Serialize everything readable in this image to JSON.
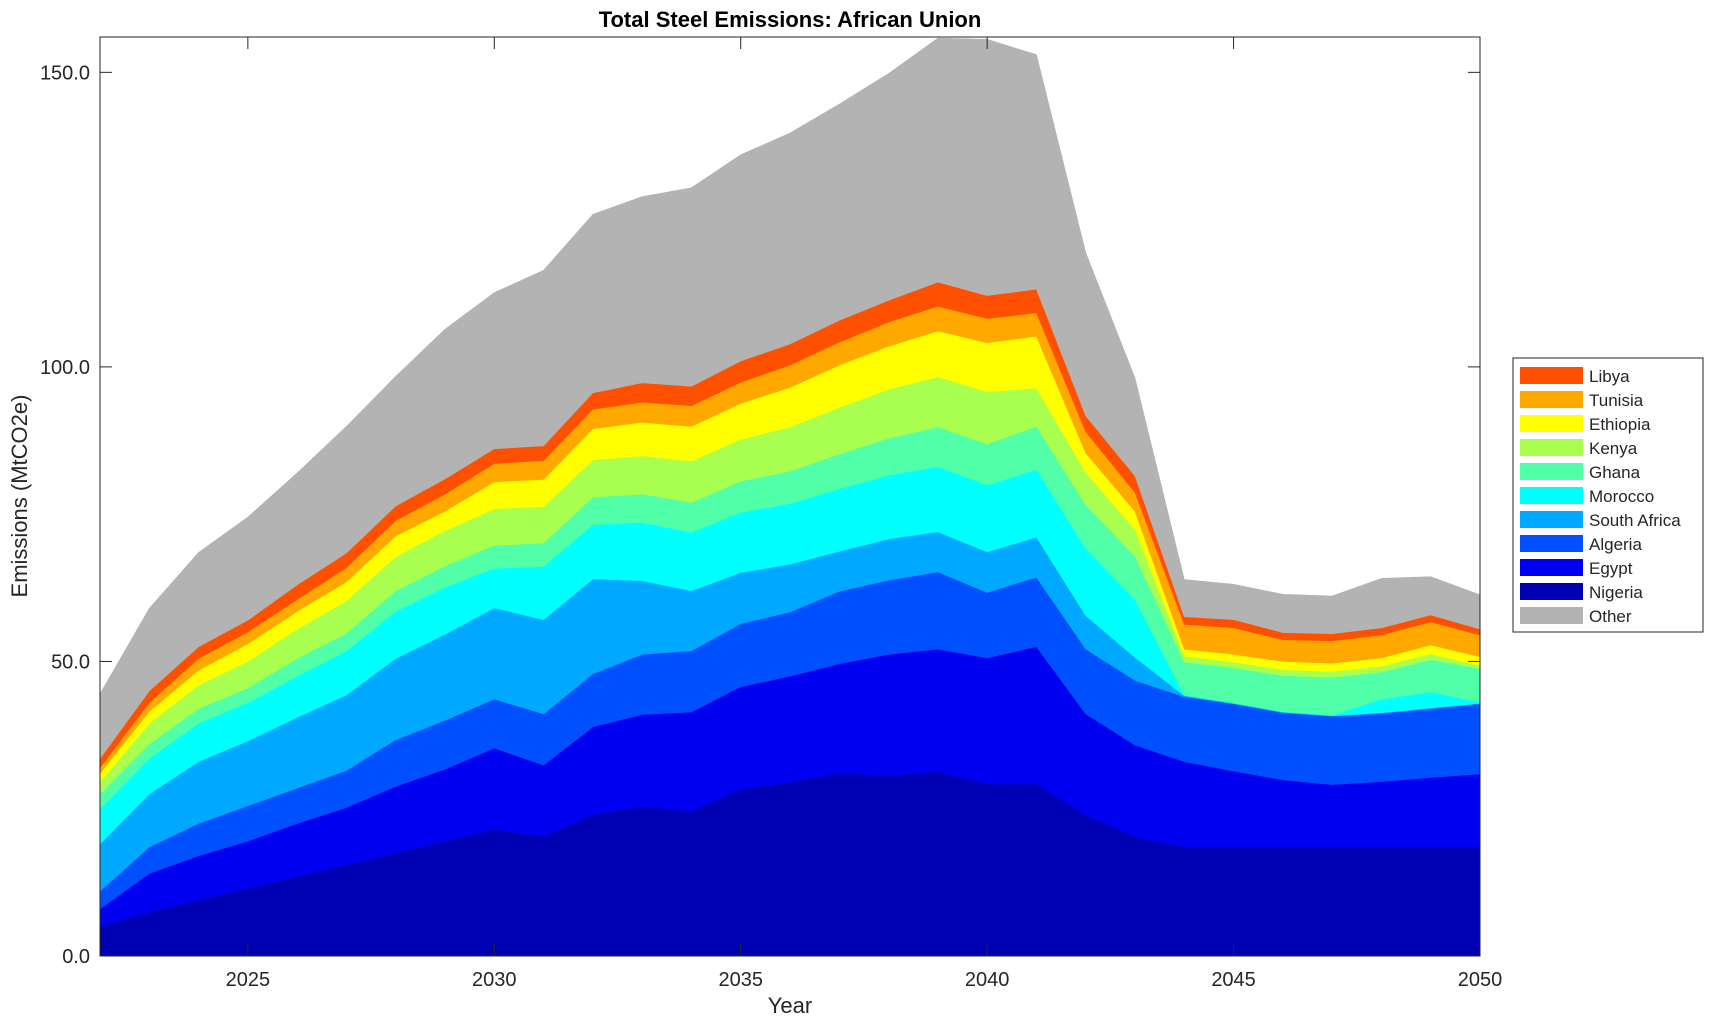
{
  "chart_data": {
    "type": "area",
    "stacked": true,
    "title": "Total Steel Emissions: African Union",
    "xlabel": "Year",
    "ylabel": "Emissions (MtCO2e)",
    "xlim": [
      2022,
      2050
    ],
    "ylim": [
      0,
      156
    ],
    "xticks": [
      2025,
      2030,
      2035,
      2040,
      2045,
      2050
    ],
    "xtick_labels": [
      "2025",
      "2030",
      "2035",
      "2040",
      "2045",
      "2050"
    ],
    "yticks": [
      0,
      50,
      100,
      150
    ],
    "ytick_labels": [
      "0.0",
      "50.0",
      "100.0",
      "150.0"
    ],
    "legend_position": "right",
    "x": [
      2022,
      2023,
      2024,
      2025,
      2026,
      2027,
      2028,
      2029,
      2030,
      2031,
      2032,
      2033,
      2034,
      2035,
      2036,
      2037,
      2038,
      2039,
      2040,
      2041,
      2042,
      2043,
      2044,
      2045,
      2046,
      2047,
      2048,
      2049,
      2050
    ],
    "series": [
      {
        "name": "Nigeria",
        "color": "#0000b3",
        "values": [
          5,
          7.5,
          9.5,
          11.5,
          13.5,
          15.5,
          17.5,
          19.5,
          21.5,
          20.3,
          24,
          25.4,
          24.6,
          28.3,
          29.5,
          31.1,
          30.6,
          31.3,
          29.2,
          29.2,
          23.9,
          20.3,
          18.5,
          18.5,
          18.5,
          18.5,
          18.5,
          18.5,
          18.5
        ]
      },
      {
        "name": "Egypt",
        "color": "#0000f0",
        "values": [
          3,
          6.5,
          7.5,
          8,
          9,
          9.7,
          11.3,
          12.2,
          13.8,
          12.1,
          14.9,
          15.6,
          16.8,
          17.4,
          18,
          18.5,
          20.6,
          20.8,
          21.4,
          23.3,
          17.2,
          15.5,
          14.5,
          12.9,
          11.4,
          10.6,
          11.1,
          11.8,
          12.4
        ]
      },
      {
        "name": "Algeria",
        "color": "#0050ff",
        "values": [
          3,
          4.5,
          5.5,
          6,
          6,
          6.3,
          7.9,
          8.3,
          8.3,
          8.7,
          9,
          10.2,
          10.4,
          10.7,
          10.9,
          12.3,
          12.6,
          13.1,
          11.1,
          11.8,
          11,
          11,
          11,
          11.4,
          11.4,
          11.6,
          11.6,
          11.7,
          11.9
        ]
      },
      {
        "name": "South Africa",
        "color": "#00a8ff",
        "values": [
          8,
          9,
          10.5,
          11,
          12,
          12.8,
          13.8,
          14.6,
          15.5,
          16,
          16.1,
          12.5,
          10.2,
          8.7,
          8.1,
          6.8,
          7,
          6.8,
          6.9,
          6.8,
          5.7,
          3.9,
          0.2,
          0.1,
          0.1,
          0.1,
          0.1,
          0.1,
          0.1
        ]
      },
      {
        "name": "Morocco",
        "color": "#00ffff",
        "values": [
          6,
          6,
          6.5,
          6.5,
          7,
          7.5,
          8,
          8,
          6.7,
          9,
          9.2,
          9.9,
          9.9,
          10.2,
          10.3,
          10.6,
          10.8,
          11.1,
          11.3,
          11.5,
          11.4,
          9.8,
          0.1,
          0.1,
          0.1,
          0.1,
          2.3,
          2.7,
          0.2
        ]
      },
      {
        "name": "Ghana",
        "color": "#50ffa8",
        "values": [
          2.5,
          2.5,
          2.5,
          2.5,
          3,
          3,
          3.5,
          3.6,
          3.9,
          4,
          4.7,
          4.8,
          5.1,
          5.3,
          5.5,
          5.9,
          6.3,
          6.7,
          7,
          7.3,
          7.4,
          7.4,
          5.6,
          5.9,
          6.1,
          6.4,
          4.6,
          5.5,
          5.7
        ]
      },
      {
        "name": "Kenya",
        "color": "#a8ff50",
        "values": [
          2,
          3.5,
          4,
          4.5,
          5,
          5.5,
          5.8,
          6,
          6.2,
          6.2,
          6.3,
          6.5,
          7,
          7.1,
          7.5,
          7.9,
          8.3,
          8.5,
          8.9,
          6.5,
          5.5,
          4.5,
          1,
          1,
          1,
          1,
          1,
          1,
          0.5
        ]
      },
      {
        "name": "Ethiopia",
        "color": "#ffff00",
        "values": [
          1.5,
          2,
          2.5,
          3,
          3,
          3.2,
          3.5,
          3.3,
          4.6,
          4.6,
          5.3,
          5.7,
          5.9,
          6.1,
          6.7,
          7.2,
          7.3,
          7.8,
          8.3,
          8.8,
          3.3,
          3.1,
          1.2,
          1.3,
          1.4,
          1.4,
          1.4,
          1.5,
          1.5
        ]
      },
      {
        "name": "Tunisia",
        "color": "#ffa800",
        "values": [
          1,
          1.5,
          2,
          2,
          2,
          2.4,
          2.6,
          2.9,
          3.1,
          3.2,
          3.3,
          3.4,
          3.5,
          3.6,
          3.8,
          3.9,
          4.1,
          4.2,
          4.1,
          4,
          3.6,
          3.2,
          4.2,
          4.5,
          3.7,
          3.8,
          3.9,
          3.9,
          3.7
        ]
      },
      {
        "name": "Libya",
        "color": "#ff5000",
        "values": [
          1.5,
          2,
          2,
          2,
          2.5,
          2.5,
          2.5,
          2.6,
          2.5,
          2.5,
          2.8,
          3.3,
          3.3,
          3.6,
          3.6,
          3.7,
          3.7,
          4.1,
          3.9,
          4,
          2.7,
          2.8,
          1.3,
          1.4,
          1.2,
          1.2,
          1.2,
          1.2,
          1
        ]
      },
      {
        "name": "Other",
        "color": "#b3b3b3",
        "values": [
          11,
          14,
          16,
          17.5,
          19,
          21.5,
          22,
          25.4,
          26.5,
          29.8,
          30.3,
          31.6,
          33.7,
          35,
          35.8,
          36.7,
          38.5,
          41.4,
          43.5,
          39.8,
          27.7,
          16.6,
          6.3,
          6,
          6.5,
          6.4,
          8.4,
          6.5,
          5.8
        ]
      }
    ],
    "legend_order": [
      "Libya",
      "Tunisia",
      "Ethiopia",
      "Kenya",
      "Ghana",
      "Morocco",
      "South Africa",
      "Algeria",
      "Egypt",
      "Nigeria",
      "Other"
    ]
  }
}
